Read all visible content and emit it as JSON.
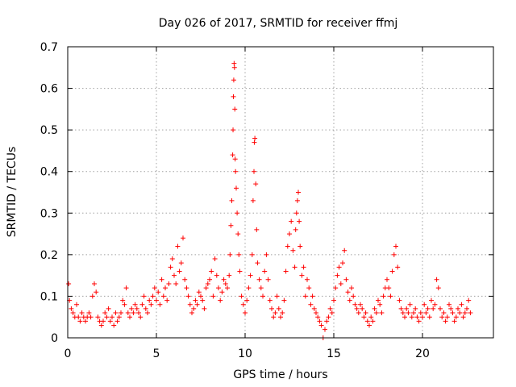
{
  "chart_data": {
    "type": "scatter",
    "title": "Day 026 of 2017, SRMTID for receiver ffmj",
    "xlabel": "GPS time / hours",
    "ylabel": "SRMTID / TECUs",
    "xlim": [
      0,
      24
    ],
    "ylim": [
      0,
      0.7
    ],
    "xticks": [
      0,
      5,
      10,
      15,
      20
    ],
    "yticks": [
      0,
      0.1,
      0.2,
      0.3,
      0.4,
      0.5,
      0.6,
      0.7
    ],
    "xtick_labels": [
      "0",
      "5",
      "10",
      "15",
      "20"
    ],
    "ytick_labels": [
      "0",
      "0.1",
      "0.2",
      "0.3",
      "0.4",
      "0.5",
      "0.6",
      "0.7"
    ],
    "grid": true,
    "marker": "+",
    "color": "#ff0000",
    "series": [
      {
        "name": "SRMTID",
        "points": [
          [
            0.05,
            0.13
          ],
          [
            0.1,
            0.09
          ],
          [
            0.2,
            0.07
          ],
          [
            0.3,
            0.06
          ],
          [
            0.4,
            0.05
          ],
          [
            0.5,
            0.08
          ],
          [
            0.6,
            0.05
          ],
          [
            0.7,
            0.04
          ],
          [
            0.8,
            0.06
          ],
          [
            0.9,
            0.05
          ],
          [
            1.0,
            0.04
          ],
          [
            1.1,
            0.05
          ],
          [
            1.2,
            0.06
          ],
          [
            1.3,
            0.05
          ],
          [
            1.4,
            0.1
          ],
          [
            1.5,
            0.13
          ],
          [
            1.6,
            0.11
          ],
          [
            1.7,
            0.05
          ],
          [
            1.8,
            0.04
          ],
          [
            1.9,
            0.03
          ],
          [
            2.0,
            0.04
          ],
          [
            2.1,
            0.06
          ],
          [
            2.2,
            0.05
          ],
          [
            2.3,
            0.07
          ],
          [
            2.4,
            0.04
          ],
          [
            2.5,
            0.05
          ],
          [
            2.6,
            0.03
          ],
          [
            2.7,
            0.06
          ],
          [
            2.8,
            0.04
          ],
          [
            2.9,
            0.05
          ],
          [
            3.0,
            0.06
          ],
          [
            3.1,
            0.09
          ],
          [
            3.2,
            0.08
          ],
          [
            3.3,
            0.12
          ],
          [
            3.4,
            0.06
          ],
          [
            3.5,
            0.05
          ],
          [
            3.6,
            0.07
          ],
          [
            3.7,
            0.06
          ],
          [
            3.8,
            0.08
          ],
          [
            3.9,
            0.07
          ],
          [
            4.0,
            0.06
          ],
          [
            4.1,
            0.05
          ],
          [
            4.2,
            0.08
          ],
          [
            4.3,
            0.1
          ],
          [
            4.4,
            0.07
          ],
          [
            4.5,
            0.06
          ],
          [
            4.6,
            0.09
          ],
          [
            4.7,
            0.08
          ],
          [
            4.8,
            0.1
          ],
          [
            4.9,
            0.12
          ],
          [
            5.0,
            0.09
          ],
          [
            5.1,
            0.11
          ],
          [
            5.2,
            0.08
          ],
          [
            5.3,
            0.14
          ],
          [
            5.4,
            0.1
          ],
          [
            5.5,
            0.12
          ],
          [
            5.6,
            0.09
          ],
          [
            5.7,
            0.13
          ],
          [
            5.8,
            0.17
          ],
          [
            5.9,
            0.19
          ],
          [
            6.0,
            0.15
          ],
          [
            6.1,
            0.13
          ],
          [
            6.2,
            0.22
          ],
          [
            6.3,
            0.16
          ],
          [
            6.4,
            0.18
          ],
          [
            6.5,
            0.24
          ],
          [
            6.6,
            0.14
          ],
          [
            6.7,
            0.12
          ],
          [
            6.8,
            0.1
          ],
          [
            6.9,
            0.08
          ],
          [
            7.0,
            0.06
          ],
          [
            7.1,
            0.07
          ],
          [
            7.2,
            0.09
          ],
          [
            7.3,
            0.08
          ],
          [
            7.4,
            0.11
          ],
          [
            7.5,
            0.1
          ],
          [
            7.6,
            0.09
          ],
          [
            7.7,
            0.07
          ],
          [
            7.8,
            0.12
          ],
          [
            7.9,
            0.13
          ],
          [
            8.0,
            0.14
          ],
          [
            8.1,
            0.16
          ],
          [
            8.2,
            0.1
          ],
          [
            8.3,
            0.19
          ],
          [
            8.4,
            0.15
          ],
          [
            8.5,
            0.12
          ],
          [
            8.6,
            0.09
          ],
          [
            8.7,
            0.11
          ],
          [
            8.8,
            0.14
          ],
          [
            8.9,
            0.13
          ],
          [
            9.0,
            0.12
          ],
          [
            9.1,
            0.15
          ],
          [
            9.15,
            0.2
          ],
          [
            9.2,
            0.27
          ],
          [
            9.25,
            0.33
          ],
          [
            9.3,
            0.44
          ],
          [
            9.32,
            0.5
          ],
          [
            9.34,
            0.58
          ],
          [
            9.36,
            0.62
          ],
          [
            9.38,
            0.66
          ],
          [
            9.4,
            0.65
          ],
          [
            9.42,
            0.55
          ],
          [
            9.44,
            0.43
          ],
          [
            9.46,
            0.4
          ],
          [
            9.5,
            0.36
          ],
          [
            9.55,
            0.3
          ],
          [
            9.6,
            0.25
          ],
          [
            9.65,
            0.2
          ],
          [
            9.7,
            0.16
          ],
          [
            9.8,
            0.1
          ],
          [
            9.9,
            0.08
          ],
          [
            10.0,
            0.06
          ],
          [
            10.1,
            0.09
          ],
          [
            10.2,
            0.12
          ],
          [
            10.3,
            0.15
          ],
          [
            10.4,
            0.2
          ],
          [
            10.45,
            0.33
          ],
          [
            10.5,
            0.4
          ],
          [
            10.52,
            0.47
          ],
          [
            10.55,
            0.48
          ],
          [
            10.6,
            0.37
          ],
          [
            10.65,
            0.26
          ],
          [
            10.7,
            0.18
          ],
          [
            10.8,
            0.14
          ],
          [
            10.9,
            0.12
          ],
          [
            11.0,
            0.1
          ],
          [
            11.1,
            0.16
          ],
          [
            11.2,
            0.2
          ],
          [
            11.3,
            0.14
          ],
          [
            11.4,
            0.09
          ],
          [
            11.5,
            0.07
          ],
          [
            11.6,
            0.05
          ],
          [
            11.7,
            0.06
          ],
          [
            11.8,
            0.1
          ],
          [
            11.9,
            0.07
          ],
          [
            12.0,
            0.05
          ],
          [
            12.1,
            0.06
          ],
          [
            12.2,
            0.09
          ],
          [
            12.3,
            0.16
          ],
          [
            12.4,
            0.22
          ],
          [
            12.5,
            0.25
          ],
          [
            12.6,
            0.28
          ],
          [
            12.7,
            0.21
          ],
          [
            12.8,
            0.17
          ],
          [
            12.85,
            0.26
          ],
          [
            12.9,
            0.3
          ],
          [
            12.95,
            0.33
          ],
          [
            13.0,
            0.35
          ],
          [
            13.05,
            0.28
          ],
          [
            13.1,
            0.22
          ],
          [
            13.2,
            0.15
          ],
          [
            13.3,
            0.17
          ],
          [
            13.4,
            0.1
          ],
          [
            13.5,
            0.14
          ],
          [
            13.6,
            0.12
          ],
          [
            13.7,
            0.08
          ],
          [
            13.8,
            0.1
          ],
          [
            13.9,
            0.07
          ],
          [
            14.0,
            0.06
          ],
          [
            14.1,
            0.05
          ],
          [
            14.2,
            0.04
          ],
          [
            14.3,
            0.03
          ],
          [
            14.4,
            0.0
          ],
          [
            14.5,
            0.02
          ],
          [
            14.6,
            0.04
          ],
          [
            14.7,
            0.05
          ],
          [
            14.8,
            0.07
          ],
          [
            14.9,
            0.06
          ],
          [
            15.0,
            0.09
          ],
          [
            15.1,
            0.12
          ],
          [
            15.2,
            0.15
          ],
          [
            15.3,
            0.17
          ],
          [
            15.4,
            0.13
          ],
          [
            15.5,
            0.18
          ],
          [
            15.6,
            0.21
          ],
          [
            15.7,
            0.14
          ],
          [
            15.8,
            0.11
          ],
          [
            15.9,
            0.09
          ],
          [
            16.0,
            0.12
          ],
          [
            16.1,
            0.1
          ],
          [
            16.2,
            0.08
          ],
          [
            16.3,
            0.07
          ],
          [
            16.4,
            0.06
          ],
          [
            16.5,
            0.08
          ],
          [
            16.6,
            0.07
          ],
          [
            16.7,
            0.05
          ],
          [
            16.8,
            0.06
          ],
          [
            16.9,
            0.04
          ],
          [
            17.0,
            0.03
          ],
          [
            17.1,
            0.05
          ],
          [
            17.2,
            0.04
          ],
          [
            17.3,
            0.07
          ],
          [
            17.4,
            0.06
          ],
          [
            17.5,
            0.09
          ],
          [
            17.6,
            0.08
          ],
          [
            17.7,
            0.06
          ],
          [
            17.8,
            0.1
          ],
          [
            17.9,
            0.12
          ],
          [
            18.0,
            0.14
          ],
          [
            18.1,
            0.12
          ],
          [
            18.2,
            0.1
          ],
          [
            18.3,
            0.16
          ],
          [
            18.4,
            0.2
          ],
          [
            18.5,
            0.22
          ],
          [
            18.6,
            0.17
          ],
          [
            18.7,
            0.09
          ],
          [
            18.8,
            0.07
          ],
          [
            18.9,
            0.06
          ],
          [
            19.0,
            0.05
          ],
          [
            19.1,
            0.07
          ],
          [
            19.2,
            0.06
          ],
          [
            19.3,
            0.08
          ],
          [
            19.4,
            0.05
          ],
          [
            19.5,
            0.06
          ],
          [
            19.6,
            0.07
          ],
          [
            19.7,
            0.05
          ],
          [
            19.8,
            0.04
          ],
          [
            19.9,
            0.06
          ],
          [
            20.0,
            0.05
          ],
          [
            20.1,
            0.08
          ],
          [
            20.2,
            0.06
          ],
          [
            20.3,
            0.07
          ],
          [
            20.4,
            0.05
          ],
          [
            20.5,
            0.09
          ],
          [
            20.6,
            0.07
          ],
          [
            20.7,
            0.08
          ],
          [
            20.8,
            0.14
          ],
          [
            20.9,
            0.12
          ],
          [
            21.0,
            0.07
          ],
          [
            21.1,
            0.05
          ],
          [
            21.2,
            0.06
          ],
          [
            21.3,
            0.04
          ],
          [
            21.4,
            0.05
          ],
          [
            21.5,
            0.08
          ],
          [
            21.6,
            0.07
          ],
          [
            21.7,
            0.06
          ],
          [
            21.8,
            0.04
          ],
          [
            21.9,
            0.05
          ],
          [
            22.0,
            0.07
          ],
          [
            22.1,
            0.06
          ],
          [
            22.2,
            0.08
          ],
          [
            22.3,
            0.05
          ],
          [
            22.4,
            0.06
          ],
          [
            22.5,
            0.07
          ],
          [
            22.6,
            0.09
          ],
          [
            22.7,
            0.06
          ]
        ]
      }
    ]
  }
}
